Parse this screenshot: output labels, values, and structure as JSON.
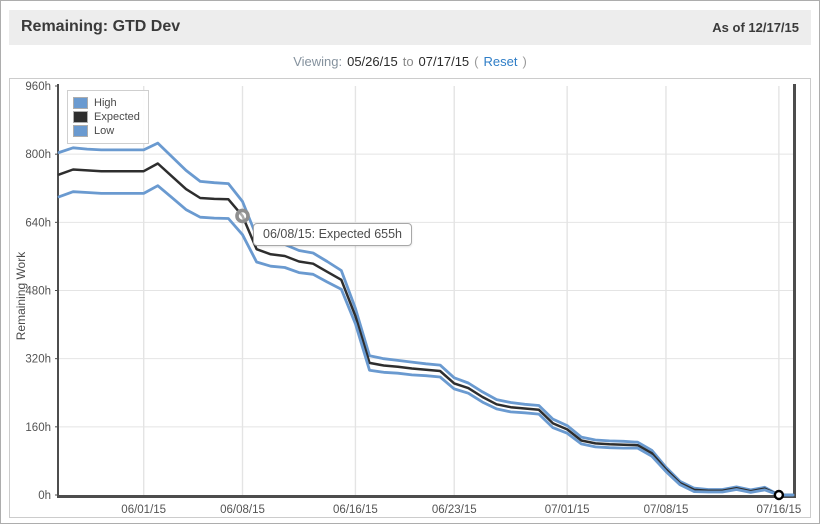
{
  "header": {
    "title": "Remaining: GTD Dev",
    "as_of": "As of 12/17/15"
  },
  "viewing": {
    "label": "Viewing:",
    "from": "05/26/15",
    "to_word": "to",
    "to": "07/17/15",
    "paren_open": "(",
    "reset": "Reset",
    "paren_close": ")"
  },
  "chart_data": {
    "type": "line",
    "title": "",
    "xlabel": "",
    "ylabel": "Remaining Work",
    "ylim": [
      0,
      960
    ],
    "grid": true,
    "legend_position": "top-left",
    "y_ticks": [
      {
        "label": "0h",
        "value": 0
      },
      {
        "label": "160h",
        "value": 160
      },
      {
        "label": "320h",
        "value": 320
      },
      {
        "label": "480h",
        "value": 480
      },
      {
        "label": "640h",
        "value": 640
      },
      {
        "label": "800h",
        "value": 800
      },
      {
        "label": "960h",
        "value": 960
      }
    ],
    "x_ticks": [
      {
        "label": "06/01/15",
        "index": 6
      },
      {
        "label": "06/08/15",
        "index": 13
      },
      {
        "label": "06/16/15",
        "index": 21
      },
      {
        "label": "06/23/15",
        "index": 28
      },
      {
        "label": "07/01/15",
        "index": 36
      },
      {
        "label": "07/08/15",
        "index": 43
      },
      {
        "label": "07/16/15",
        "index": 51
      }
    ],
    "dates": [
      "05/26",
      "05/27",
      "05/28",
      "05/29",
      "05/30",
      "05/31",
      "06/01",
      "06/02",
      "06/03",
      "06/04",
      "06/05",
      "06/06",
      "06/07",
      "06/08",
      "06/09",
      "06/10",
      "06/11",
      "06/12",
      "06/13",
      "06/14",
      "06/15",
      "06/16",
      "06/17",
      "06/18",
      "06/19",
      "06/20",
      "06/21",
      "06/22",
      "06/23",
      "06/24",
      "06/25",
      "06/26",
      "06/27",
      "06/28",
      "06/29",
      "06/30",
      "07/01",
      "07/02",
      "07/03",
      "07/04",
      "07/05",
      "07/06",
      "07/07",
      "07/08",
      "07/09",
      "07/10",
      "07/11",
      "07/12",
      "07/13",
      "07/14",
      "07/15",
      "07/16",
      "07/17"
    ],
    "series": [
      {
        "name": "High",
        "color": "#6a9ad0",
        "values": [
          804,
          815,
          812,
          810,
          810,
          810,
          810,
          826,
          794,
          762,
          736,
          733,
          731,
          689,
          607,
          593,
          588,
          574,
          568,
          548,
          527,
          438,
          327,
          320,
          316,
          312,
          308,
          305,
          275,
          263,
          242,
          224,
          217,
          213,
          210,
          178,
          163,
          136,
          129,
          127,
          126,
          124,
          105,
          65,
          32,
          16,
          13,
          13,
          19,
          12,
          18,
          0,
          0
        ]
      },
      {
        "name": "Expected",
        "color": "#2e2e2e",
        "values": [
          752,
          764,
          762,
          760,
          760,
          760,
          760,
          778,
          748,
          718,
          697,
          695,
          694,
          655,
          577,
          565,
          561,
          548,
          543,
          524,
          505,
          420,
          310,
          304,
          301,
          297,
          294,
          291,
          262,
          251,
          230,
          213,
          206,
          203,
          200,
          168,
          154,
          128,
          121,
          119,
          118,
          117,
          98,
          60,
          28,
          12,
          10,
          10,
          16,
          9,
          15,
          0,
          0
        ]
      },
      {
        "name": "Low",
        "color": "#6a9ad0",
        "values": [
          700,
          712,
          710,
          708,
          708,
          708,
          708,
          726,
          698,
          670,
          652,
          650,
          649,
          611,
          547,
          537,
          534,
          522,
          518,
          500,
          483,
          402,
          293,
          288,
          286,
          282,
          280,
          277,
          249,
          239,
          218,
          202,
          195,
          193,
          190,
          158,
          145,
          120,
          113,
          111,
          110,
          110,
          91,
          55,
          24,
          8,
          7,
          7,
          13,
          6,
          12,
          0,
          0
        ]
      }
    ],
    "highlight_point": {
      "series": "Expected",
      "index": 13,
      "date": "06/08/15",
      "value": 655
    },
    "end_point": {
      "index": 51,
      "date": "07/16/15",
      "value": 0
    },
    "tooltip": {
      "text": "06/08/15: Expected 655h",
      "date": "06/08/15",
      "series": "Expected",
      "value": "655h"
    },
    "colors": {
      "band": "#6a9ad0",
      "expected": "#2e2e2e",
      "grid": "#e4e4e4",
      "axis": "#4d4d4d",
      "tick_text": "#545454"
    }
  }
}
